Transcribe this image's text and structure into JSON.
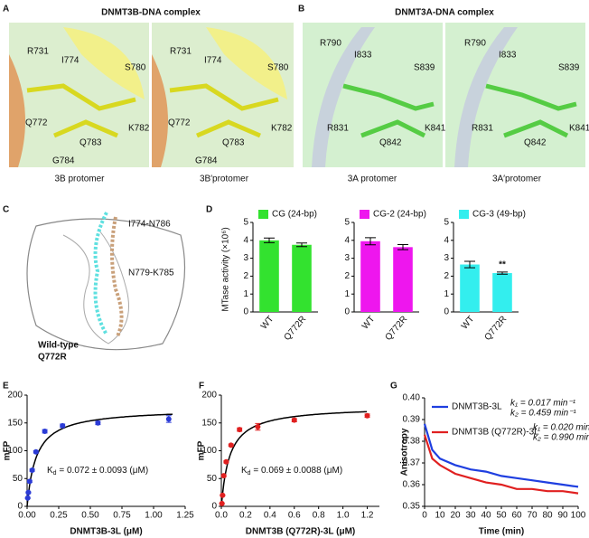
{
  "panel_labels": [
    "A",
    "B",
    "C",
    "D",
    "E",
    "F",
    "G"
  ],
  "panel_a": {
    "title": "DNMT3B-DNA complex",
    "residues": [
      "R731",
      "I774",
      "S780",
      "Q772",
      "K782",
      "Q783",
      "G784"
    ],
    "captions": [
      "3B protomer",
      "3B′protomer"
    ]
  },
  "panel_b": {
    "title": "DNMT3A-DNA complex",
    "residues": [
      "R790",
      "I833",
      "S839",
      "R831",
      "K841",
      "Q842"
    ],
    "captions": [
      "3A protomer",
      "3A′protomer"
    ]
  },
  "panel_c": {
    "labels": [
      "I774-N786",
      "N779-K785"
    ],
    "legend": [
      "Wild-type",
      "Q772R"
    ]
  },
  "panel_d": {
    "ylabel": "MTase activity (×10⁶)"
  },
  "chart_data": [
    {
      "type": "bar",
      "categories": [
        "WT",
        "Q772R"
      ],
      "series": [
        {
          "name": "CG (24-bp)",
          "color": "#33e22f",
          "values": [
            4.0,
            3.75
          ],
          "errors": [
            0.13,
            0.1
          ]
        }
      ],
      "ylim": [
        0,
        5
      ],
      "yticks": [
        0,
        1,
        2,
        3,
        4,
        5
      ]
    },
    {
      "type": "bar",
      "categories": [
        "WT",
        "Q772R"
      ],
      "series": [
        {
          "name": "CG-2 (24-bp)",
          "color": "#ee16ee",
          "values": [
            3.95,
            3.62
          ],
          "errors": [
            0.2,
            0.14
          ]
        }
      ],
      "ylim": [
        0,
        5
      ],
      "yticks": [
        0,
        1,
        2,
        3,
        4,
        5
      ]
    },
    {
      "type": "bar",
      "categories": [
        "WT",
        "Q772R"
      ],
      "series": [
        {
          "name": "CG-3 (49-bp)",
          "color": "#33eeee",
          "values": [
            2.65,
            2.17
          ],
          "errors": [
            0.18,
            0.06
          ]
        }
      ],
      "annotation": "**",
      "ylim": [
        0,
        5
      ],
      "yticks": [
        0,
        1,
        2,
        3,
        4,
        5
      ]
    },
    {
      "type": "scatter",
      "xlabel": "DNMT3B-3L (μM)",
      "ylabel": "mFP",
      "color": "#2b3bd6",
      "x": [
        0.005,
        0.01,
        0.02,
        0.04,
        0.07,
        0.14,
        0.28,
        0.56,
        1.12
      ],
      "values": [
        15,
        25,
        45,
        65,
        98,
        135,
        145,
        150,
        157
      ],
      "errors": [
        1,
        1,
        2,
        2,
        2,
        3,
        3,
        3,
        6
      ],
      "fit": {
        "bmax": 176,
        "kd": 0.072
      },
      "annotation": {
        "symbol": "K",
        "sub": "d",
        "text": " = 0.072 ± 0.0093  (μM)"
      },
      "xlim": [
        0,
        1.25
      ],
      "xticks": [
        {
          "value": 0,
          "label": "0.00"
        },
        0.25,
        {
          "value": 0.5,
          "label": "0.50"
        },
        0.75,
        {
          "value": 1,
          "label": "1.00"
        },
        1.25
      ],
      "ylim": [
        0,
        200
      ],
      "yticks": [
        0,
        50,
        100,
        150,
        200
      ]
    },
    {
      "type": "scatter",
      "xlabel": "DNMT3B (Q772R)-3L (μM)",
      "ylabel": "mFP",
      "color": "#e02020",
      "x": [
        0.005,
        0.01,
        0.02,
        0.04,
        0.08,
        0.15,
        0.3,
        0.6,
        1.2
      ],
      "values": [
        5,
        20,
        55,
        80,
        110,
        138,
        143,
        155,
        163
      ],
      "errors": [
        1,
        1,
        2,
        2,
        2,
        3,
        6,
        3,
        3
      ],
      "fit": {
        "bmax": 180,
        "kd": 0.069
      },
      "annotation": {
        "symbol": "K",
        "sub": "d",
        "text": " = 0.069  ± 0.0088  (μM)"
      },
      "xlim": [
        0,
        1.3
      ],
      "xticks": [
        {
          "value": 0,
          "label": "0.0"
        },
        0.2,
        0.4,
        0.6,
        0.8,
        {
          "value": 1,
          "label": "1.0"
        },
        1.2
      ],
      "ylim": [
        0,
        200
      ],
      "yticks": [
        0,
        50,
        100,
        150,
        200
      ]
    },
    {
      "type": "line",
      "xlabel": "Time (min)",
      "ylabel": "Anisotropy",
      "x": [
        0,
        5,
        10,
        20,
        30,
        40,
        50,
        60,
        70,
        80,
        90,
        100
      ],
      "series": [
        {
          "name": "DNMT3B-3L",
          "color": "#1f3fe0",
          "values": [
            0.388,
            0.376,
            0.372,
            0.369,
            0.367,
            0.366,
            0.364,
            0.363,
            0.362,
            0.361,
            0.36,
            0.359
          ],
          "rates": [
            "k₁ = 0.017 min⁻¹",
            "k₂ = 0.459 min⁻¹"
          ]
        },
        {
          "name": "DNMT3B (Q772R)-3L",
          "color": "#e02020",
          "values": [
            0.383,
            0.372,
            0.369,
            0.365,
            0.363,
            0.361,
            0.36,
            0.358,
            0.358,
            0.357,
            0.357,
            0.356
          ],
          "rates": [
            "k₁ = 0.020 min⁻¹",
            "k₂ = 0.990 min⁻¹"
          ]
        }
      ],
      "xlim": [
        0,
        100
      ],
      "xticks": [
        0,
        10,
        20,
        30,
        40,
        50,
        60,
        70,
        80,
        90,
        100
      ],
      "ylim": [
        0.35,
        0.4
      ],
      "yticks": [
        0.35,
        0.36,
        0.37,
        0.38,
        0.39,
        {
          "value": 0.4,
          "label": "0.40"
        }
      ]
    }
  ]
}
